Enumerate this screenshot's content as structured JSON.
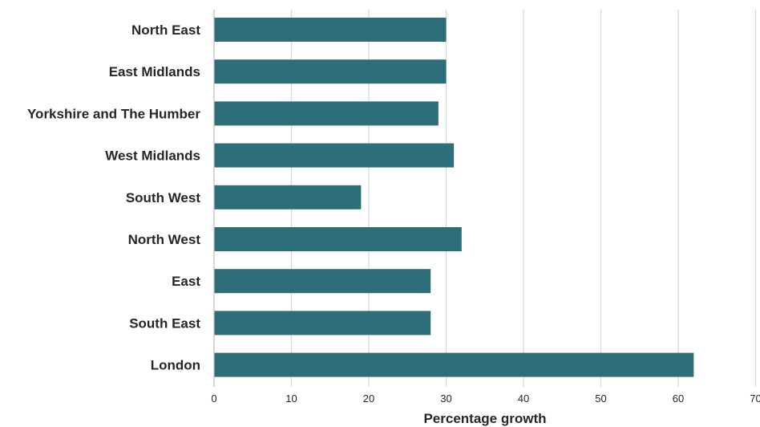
{
  "chart_data": {
    "type": "bar",
    "orientation": "horizontal",
    "categories": [
      "North East",
      "East Midlands",
      "Yorkshire and The Humber",
      "West Midlands",
      "South West",
      "North West",
      "East",
      "South East",
      "London"
    ],
    "values": [
      30,
      30,
      29,
      31,
      19,
      32,
      28,
      28,
      62
    ],
    "title": "",
    "xlabel": "Percentage growth",
    "ylabel": "",
    "xlim": [
      0,
      70
    ],
    "xticks": [
      "0",
      "10",
      "20",
      "30",
      "40",
      "50",
      "60",
      "70"
    ],
    "grid": "vertical",
    "bar_color": "#2e6e78"
  }
}
